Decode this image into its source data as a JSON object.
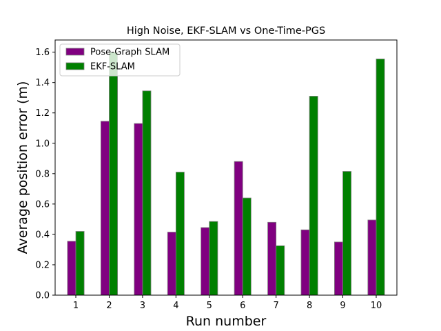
{
  "chart_data": {
    "type": "bar",
    "title": "High Noise, EKF-SLAM vs One-Time-PGS",
    "xlabel": "Run number",
    "ylabel": "Average position error (m)",
    "categories": [
      "1",
      "2",
      "3",
      "4",
      "5",
      "6",
      "7",
      "8",
      "9",
      "10"
    ],
    "series": [
      {
        "name": "Pose-Graph SLAM",
        "color": "#800080",
        "values": [
          0.355,
          1.145,
          1.13,
          0.415,
          0.445,
          0.88,
          0.48,
          0.43,
          0.35,
          0.495
        ]
      },
      {
        "name": "EKF-SLAM",
        "color": "#008000",
        "values": [
          0.42,
          1.6,
          1.345,
          0.81,
          0.485,
          0.64,
          0.325,
          1.31,
          0.815,
          1.555
        ]
      }
    ],
    "ylim": [
      0,
      1.68
    ],
    "yticks": [
      "0.0",
      "0.2",
      "0.4",
      "0.6",
      "0.8",
      "1.0",
      "1.2",
      "1.4",
      "1.6"
    ],
    "grid": false,
    "legend_position": "top-left"
  }
}
